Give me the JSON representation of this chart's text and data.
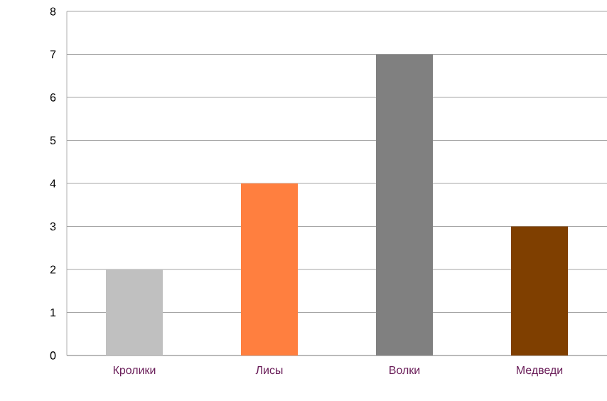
{
  "chart_data": {
    "type": "bar",
    "categories": [
      "Кролики",
      "Лисы",
      "Волки",
      "Медведи"
    ],
    "values": [
      2,
      4,
      7,
      3
    ],
    "colors": [
      "#c0c0c0",
      "#ff7f3f",
      "#808080",
      "#7f3f00"
    ],
    "ylim": [
      0,
      8
    ],
    "yticks": [
      0,
      1,
      2,
      3,
      4,
      5,
      6,
      7,
      8
    ],
    "grid": "y"
  }
}
